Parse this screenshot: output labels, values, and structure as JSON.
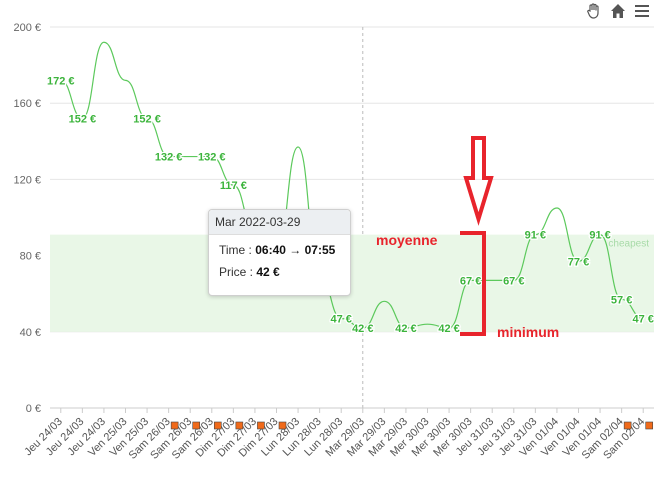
{
  "toolbar": {
    "icons": [
      "pan-hand-icon",
      "home-icon",
      "menu-icon"
    ]
  },
  "tooltip": {
    "date": "Mar 2022-03-29",
    "time_label": "Time :",
    "time_value": "06:40 → 07:55",
    "price_label": "Price :",
    "price_value": "42 €"
  },
  "annotations": {
    "average_label": "moyenne",
    "minimum_label": "minimum",
    "cheapest_label": "cheapest",
    "color": "#e8242c"
  },
  "colors": {
    "line": "#5cc95c",
    "band_fill": "#e9f7e7",
    "label": "#3cb43c",
    "grid": "#e6e6e6",
    "marker": "#f06a1a",
    "crosshair": "#bbbbbb"
  },
  "chart_data": {
    "type": "line",
    "ylim": [
      0,
      200
    ],
    "yticks": [
      "0 €",
      "40 €",
      "80 €",
      "120 €",
      "160 €",
      "200 €"
    ],
    "categories": [
      "Jeu 24/03",
      "Jeu 24/03",
      "Jeu 24/03",
      "Ven 25/03",
      "Ven 25/03",
      "Sam 26/03",
      "Sam 26/03",
      "Sam 26/03",
      "Dim 27/03",
      "Dim 27/03",
      "Dim 27/03",
      "Lun 28/03",
      "Lun 28/03",
      "Lun 28/03",
      "Mar 29/03",
      "Mar 29/03",
      "Mar 29/03",
      "Mer 30/03",
      "Mer 30/03",
      "Mer 30/03",
      "Jeu 31/03",
      "Jeu 31/03",
      "Jeu 31/03",
      "Ven 01/04",
      "Ven 01/04",
      "Ven 01/04",
      "Sam 02/04",
      "Sam 02/04"
    ],
    "marked_categories": [
      5,
      6,
      7,
      8,
      9,
      10,
      26,
      27
    ],
    "band": [
      40,
      91
    ],
    "crosshair_category": 14,
    "series": [
      {
        "values": [
          172,
          152,
          192,
          172,
          152,
          132,
          132,
          132,
          117,
          92,
          80,
          137,
          70,
          47,
          42,
          56,
          42,
          44,
          42,
          67,
          67,
          67,
          91,
          105,
          77,
          91,
          57,
          47
        ]
      }
    ],
    "point_labels": [
      {
        "i": 0,
        "text": "172 €"
      },
      {
        "i": 1,
        "text": "152 €"
      },
      {
        "i": 4,
        "text": "152 €"
      },
      {
        "i": 5,
        "text": "132 €"
      },
      {
        "i": 7,
        "text": "132 €"
      },
      {
        "i": 8,
        "text": "117 €"
      },
      {
        "i": 13,
        "text": "47 €"
      },
      {
        "i": 14,
        "text": "42 €"
      },
      {
        "i": 16,
        "text": "42 €"
      },
      {
        "i": 18,
        "text": "42 €"
      },
      {
        "i": 19,
        "text": "67 €"
      },
      {
        "i": 21,
        "text": "67 €"
      },
      {
        "i": 22,
        "text": "91 €"
      },
      {
        "i": 24,
        "text": "77 €"
      },
      {
        "i": 25,
        "text": "91 €"
      },
      {
        "i": 26,
        "text": "57 €"
      },
      {
        "i": 27,
        "text": "47 €"
      }
    ]
  }
}
